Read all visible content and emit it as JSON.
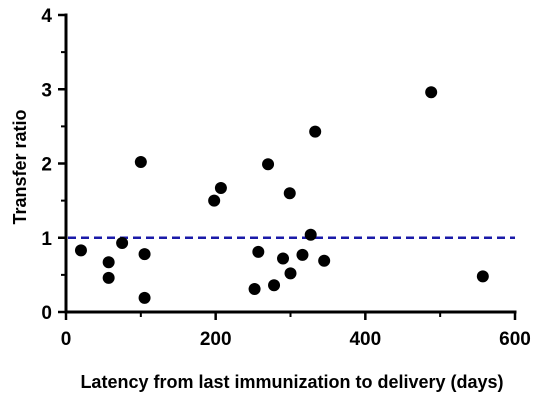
{
  "chart_data": {
    "type": "scatter",
    "title": "",
    "xlabel": "Latency from last immunization to delivery (days)",
    "ylabel": "Transfer ratio",
    "xlim": [
      0,
      600
    ],
    "ylim": [
      0,
      4
    ],
    "xticks": [
      0,
      200,
      400,
      600
    ],
    "yticks": [
      0,
      1,
      2,
      3,
      4
    ],
    "xtick_labels": [
      "0",
      "200",
      "400",
      "600"
    ],
    "ytick_labels": [
      "0",
      "1",
      "2",
      "3",
      "4"
    ],
    "grid": false,
    "reference_line": {
      "y": 1,
      "style": "dashed",
      "color": "#1a1aa8"
    },
    "marker_color": "#000000",
    "series": [
      {
        "x": [
          20,
          57,
          57,
          75,
          100,
          105,
          105,
          198,
          207,
          252,
          257,
          270,
          278,
          290,
          299,
          300,
          316,
          327,
          333,
          345,
          488,
          557
        ],
        "y": [
          0.83,
          0.67,
          0.46,
          0.93,
          2.02,
          0.78,
          0.19,
          1.5,
          1.67,
          0.31,
          0.81,
          1.99,
          0.36,
          0.72,
          1.6,
          0.52,
          0.77,
          1.04,
          2.43,
          0.69,
          2.96,
          0.48
        ]
      }
    ]
  }
}
